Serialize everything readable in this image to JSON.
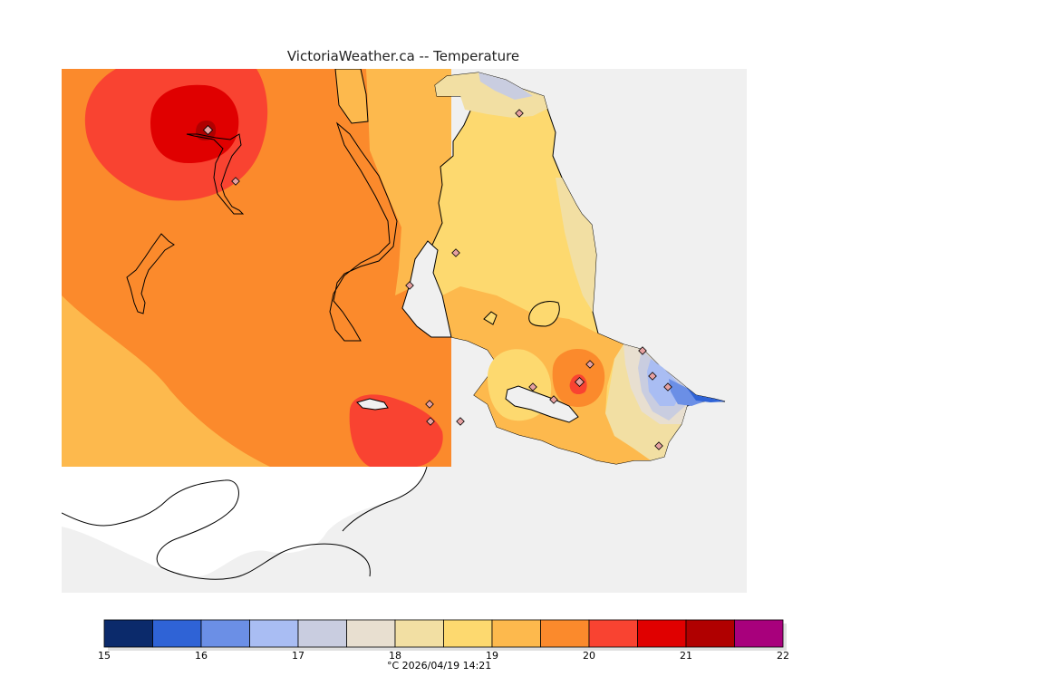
{
  "title": "VictoriaWeather.ca -- Temperature",
  "legend": {
    "bins": [
      {
        "from": 15.0,
        "to": 15.5,
        "color": "#0b2a6b"
      },
      {
        "from": 15.5,
        "to": 16.0,
        "color": "#2f63d6"
      },
      {
        "from": 16.0,
        "to": 16.5,
        "color": "#6b8fe6"
      },
      {
        "from": 16.5,
        "to": 17.0,
        "color": "#a9bdf3"
      },
      {
        "from": 17.0,
        "to": 17.5,
        "color": "#c9cde0"
      },
      {
        "from": 17.5,
        "to": 18.0,
        "color": "#e8dfd0"
      },
      {
        "from": 18.0,
        "to": 18.5,
        "color": "#f2dfa3"
      },
      {
        "from": 18.5,
        "to": 19.0,
        "color": "#fdd96f"
      },
      {
        "from": 19.0,
        "to": 19.5,
        "color": "#fdb94d"
      },
      {
        "from": 19.5,
        "to": 20.0,
        "color": "#fb8a2c"
      },
      {
        "from": 20.0,
        "to": 20.5,
        "color": "#f94331"
      },
      {
        "from": 20.5,
        "to": 21.0,
        "color": "#e00000"
      },
      {
        "from": 21.0,
        "to": 21.5,
        "color": "#b00000"
      },
      {
        "from": 21.5,
        "to": 22.0,
        "color": "#a8007c"
      }
    ],
    "ticks": [
      "15",
      "16",
      "17",
      "18",
      "19",
      "20",
      "21",
      "22"
    ]
  },
  "caption": "°C  2026/04/19 14:21",
  "colors": {
    "water": "#f0f0f0",
    "land_outside": "#ffffff",
    "coast": "#000000",
    "station_fill": "#e6a0a0"
  }
}
